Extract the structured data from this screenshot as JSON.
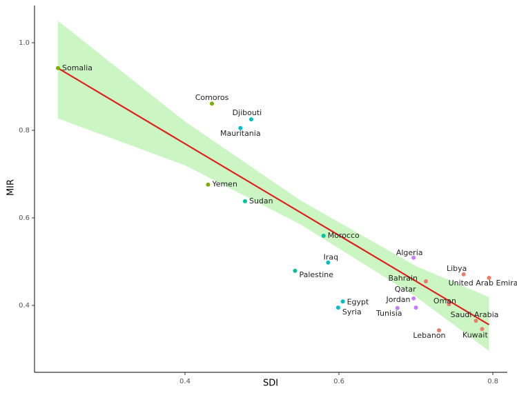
{
  "chart_data": {
    "type": "scatter",
    "x_label": "SDI",
    "y_label": "MIR",
    "xlim": [
      0.2045,
      0.8188
    ],
    "ylim": [
      0.2472,
      1.085
    ],
    "xticks": [
      0.4,
      0.6,
      0.8
    ],
    "yticks": [
      {
        "value": 0.4,
        "label": "0.4"
      },
      {
        "value": 0.6,
        "label": "0.6"
      },
      {
        "value": 0.8,
        "label": "0.8"
      },
      {
        "value": 1,
        "label": "1.0"
      }
    ],
    "grid": false,
    "points": [
      {
        "label": "Somalia",
        "x": 0.235,
        "y": 0.942,
        "color": "#7cae00"
      },
      {
        "label": "Comoros",
        "x": 0.435,
        "y": 0.861,
        "color": "#7cae00"
      },
      {
        "label": "Djibouti",
        "x": 0.486,
        "y": 0.825,
        "color": "#00bfc4"
      },
      {
        "label": "Mauritania",
        "x": 0.472,
        "y": 0.805,
        "color": "#00bfc4"
      },
      {
        "label": "Yemen",
        "x": 0.43,
        "y": 0.676,
        "color": "#7cae00"
      },
      {
        "label": "Sudan",
        "x": 0.478,
        "y": 0.638,
        "color": "#00c19a"
      },
      {
        "label": "Morocco",
        "x": 0.58,
        "y": 0.559,
        "color": "#00c19a"
      },
      {
        "label": "Iraq",
        "x": 0.586,
        "y": 0.498,
        "color": "#00bfc4"
      },
      {
        "label": "Palestine",
        "x": 0.543,
        "y": 0.479,
        "color": "#00c19a"
      },
      {
        "label": "Algeria",
        "x": 0.697,
        "y": 0.509,
        "color": "#c77cff"
      },
      {
        "label": "Libya",
        "x": 0.762,
        "y": 0.471,
        "color": "#f07a68"
      },
      {
        "label": "United Arab Emirates",
        "x": 0.795,
        "y": 0.463,
        "color": "#f07a68"
      },
      {
        "label": "Bahrain",
        "x": 0.713,
        "y": 0.455,
        "color": "#f07a68"
      },
      {
        "label": "Qatar",
        "x": 0.697,
        "y": 0.416,
        "color": "#c77cff"
      },
      {
        "label": "Egypt",
        "x": 0.605,
        "y": 0.409,
        "color": "#00bfc4"
      },
      {
        "label": "Syria",
        "x": 0.599,
        "y": 0.395,
        "color": "#00bfc4"
      },
      {
        "label": "Jordan",
        "x": 0.7,
        "y": 0.395,
        "color": "#c77cff"
      },
      {
        "label": "Tunisia",
        "x": 0.676,
        "y": 0.394,
        "color": "#c77cff"
      },
      {
        "label": "Oman",
        "x": 0.743,
        "y": 0.403,
        "color": "#f07a68"
      },
      {
        "label": "Saudi Arabia",
        "x": 0.778,
        "y": 0.365,
        "color": "#f07a68"
      },
      {
        "label": "Lebanon",
        "x": 0.73,
        "y": 0.343,
        "color": "#f07a68"
      },
      {
        "label": "Kuwait",
        "x": 0.786,
        "y": 0.346,
        "color": "#f07a68"
      }
    ],
    "fit": {
      "x": [
        0.235,
        0.795
      ],
      "y": [
        0.942,
        0.356
      ],
      "color": "#e0201b"
    },
    "band": {
      "x": [
        0.235,
        0.4,
        0.55,
        0.7,
        0.795
      ],
      "upper": [
        1.05,
        0.82,
        0.64,
        0.49,
        0.419
      ],
      "lower": [
        0.827,
        0.72,
        0.585,
        0.42,
        0.296
      ],
      "color": "#ccf5c4"
    }
  }
}
